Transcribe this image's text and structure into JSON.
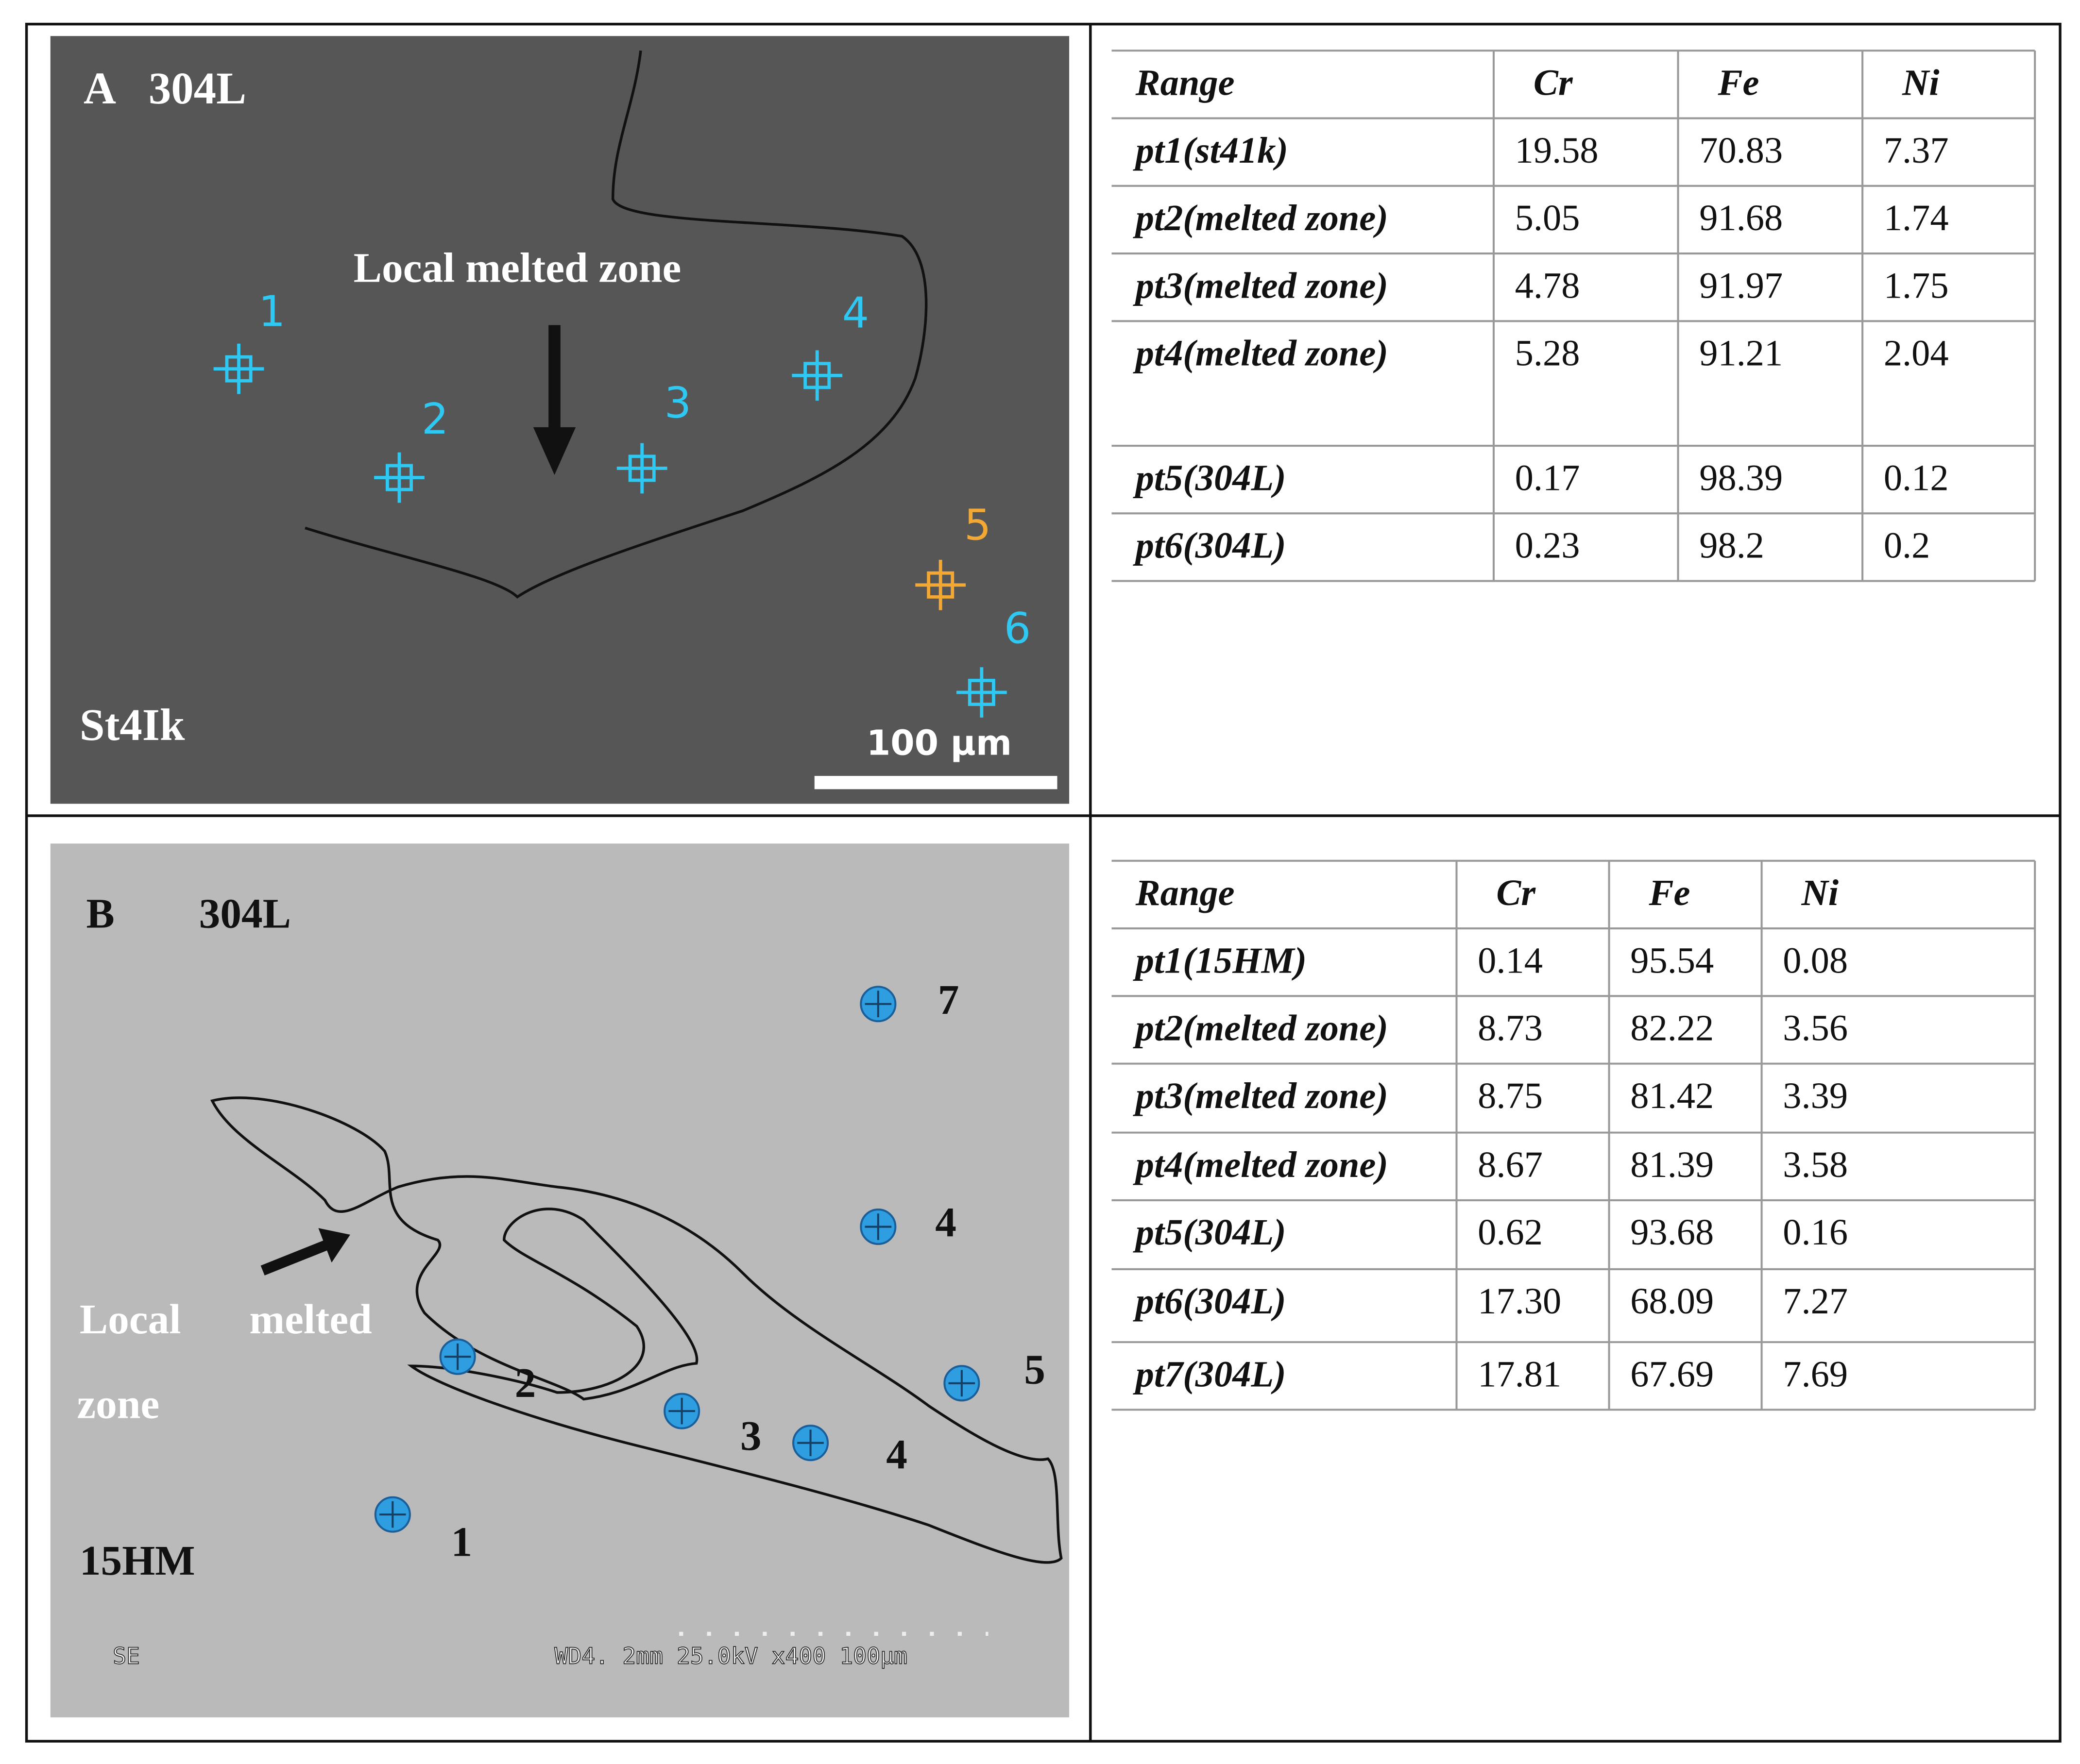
{
  "panels": [
    {
      "image": {
        "label": "A",
        "material_top": "304L",
        "annotation": "Local melted zone",
        "material_bottom": "St4Ik",
        "scale_bar": "100 µm",
        "points": [
          {
            "label": "1"
          },
          {
            "label": "2"
          },
          {
            "label": "3"
          },
          {
            "label": "4"
          },
          {
            "label": "5"
          },
          {
            "label": "6"
          }
        ]
      },
      "table": {
        "header": [
          "Range",
          "Cr",
          "Fe",
          "Ni"
        ],
        "rows": [
          [
            "pt1(st41k)",
            "19.58",
            "70.83",
            "7.37"
          ],
          [
            "pt2(melted zone)",
            "5.05",
            "91.68",
            "1.74"
          ],
          [
            "pt3(melted zone)",
            "4.78",
            "91.97",
            "1.75"
          ],
          [
            "pt4(melted zone)",
            "5.28",
            "91.21",
            "2.04"
          ],
          [
            "pt5(304L)",
            "0.17",
            "98.39",
            "0.12"
          ],
          [
            "pt6(304L)",
            "0.23",
            "98.2",
            "0.2"
          ]
        ]
      }
    },
    {
      "image": {
        "label": "B",
        "material_top": "304L",
        "annotation_words": [
          "Local",
          "melted",
          "zone"
        ],
        "material_bottom": "15HM",
        "detector": "SE",
        "info_bar": "WD4. 2mm 25.0kV x400 100µm",
        "points": [
          {
            "label": "7"
          },
          {
            "label": "4"
          },
          {
            "label": "2"
          },
          {
            "label": "3"
          },
          {
            "label": "4"
          },
          {
            "label": "5"
          },
          {
            "label": "1"
          }
        ]
      },
      "table": {
        "header": [
          "Range",
          "Cr",
          "Fe",
          "Ni"
        ],
        "rows": [
          [
            "pt1(15HM)",
            "0.14",
            "95.54",
            "0.08"
          ],
          [
            "pt2(melted zone)",
            "8.73",
            "82.22",
            "3.56"
          ],
          [
            "pt3(melted zone)",
            "8.75",
            "81.42",
            "3.39"
          ],
          [
            "pt4(melted zone)",
            "8.67",
            "81.39",
            "3.58"
          ],
          [
            "pt5(304L)",
            "0.62",
            "93.68",
            "0.16"
          ],
          [
            "pt6(304L)",
            "17.30",
            "68.09",
            "7.27"
          ],
          [
            "pt7(304L)",
            "17.81",
            "67.69",
            "7.69"
          ]
        ]
      }
    }
  ]
}
